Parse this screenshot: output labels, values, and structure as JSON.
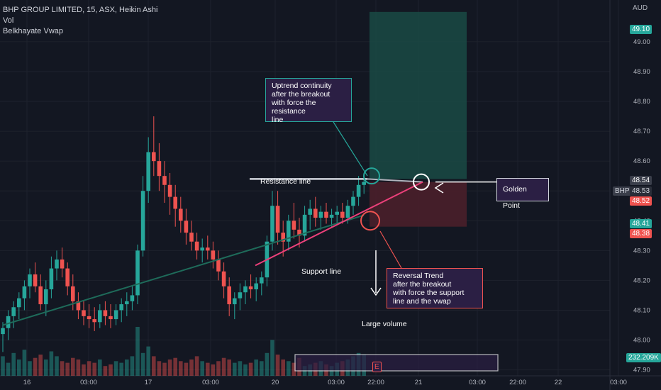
{
  "legend": {
    "symbol_line": "BHP GROUP LIMITED, 15, ASX, Heikin Ashi",
    "vol": "Vol",
    "vwap": "Belkhayate Vwap"
  },
  "price_axis": {
    "currency": "AUD",
    "ticks": [
      "49.00",
      "48.90",
      "48.80",
      "48.70",
      "48.60",
      "48.50",
      "48.40",
      "48.30",
      "48.20",
      "48.10",
      "48.00",
      "47.90"
    ],
    "labels": {
      "target": "49.10",
      "upper": "48.54",
      "symbol": "BHP",
      "last": "48.53",
      "lower": "48.52",
      "entry": "48.41",
      "stop": "48.38",
      "volume": "232.209K"
    }
  },
  "time_axis": {
    "ticks": [
      "16",
      "03:00",
      "17",
      "03:00",
      "20",
      "03:00",
      "22:00",
      "21",
      "03:00",
      "22:00",
      "22",
      "03:00"
    ]
  },
  "annotations": {
    "uptrend": "Uptrend continuity\nafter the breakout\nwith force the resistance\nline",
    "resistance": "Resistance line",
    "support": "Support line",
    "golden": "Golden Point",
    "reversal": "Reversal Trend\nafter the breakout\nwith force the support\nline and the vwap",
    "volume": "Large volume",
    "event_marker": "E"
  },
  "colors": {
    "background": "#131722",
    "up": "#26a69a",
    "down": "#ef5350",
    "vwap_up": "#ffffff",
    "vwap_down": "#ef5350",
    "vwap_green": "#1e6b5a",
    "profit_zone": "#1a4a44",
    "loss_zone": "#4a1f2a",
    "annotation_box": "#2b1f44"
  },
  "chart_data": {
    "type": "candlestick",
    "y_range": [
      47.88,
      49.14
    ],
    "candles": [
      [
        48.02,
        48.06,
        47.96,
        48.04
      ],
      [
        48.04,
        48.1,
        48.0,
        48.08
      ],
      [
        48.08,
        48.13,
        48.04,
        48.11
      ],
      [
        48.11,
        48.16,
        48.07,
        48.14
      ],
      [
        48.14,
        48.2,
        48.1,
        48.18
      ],
      [
        48.18,
        48.24,
        48.14,
        48.22
      ],
      [
        48.22,
        48.26,
        48.16,
        48.18
      ],
      [
        48.18,
        48.22,
        48.1,
        48.12
      ],
      [
        48.12,
        48.2,
        48.08,
        48.17
      ],
      [
        48.17,
        48.28,
        48.14,
        48.24
      ],
      [
        48.24,
        48.3,
        48.2,
        48.27
      ],
      [
        48.27,
        48.31,
        48.21,
        48.24
      ],
      [
        48.24,
        48.26,
        48.15,
        48.18
      ],
      [
        48.18,
        48.22,
        48.1,
        48.13
      ],
      [
        48.13,
        48.16,
        48.07,
        48.1
      ],
      [
        48.1,
        48.13,
        48.05,
        48.08
      ],
      [
        48.08,
        48.12,
        48.04,
        48.07
      ],
      [
        48.07,
        48.11,
        48.03,
        48.06
      ],
      [
        48.06,
        48.12,
        48.04,
        48.1
      ],
      [
        48.1,
        48.13,
        48.05,
        48.08
      ],
      [
        48.08,
        48.12,
        48.04,
        48.07
      ],
      [
        48.07,
        48.12,
        48.05,
        48.1
      ],
      [
        48.1,
        48.14,
        48.06,
        48.12
      ],
      [
        48.12,
        48.16,
        48.08,
        48.13
      ],
      [
        48.13,
        48.18,
        48.1,
        48.15
      ],
      [
        48.15,
        48.32,
        48.12,
        48.3
      ],
      [
        48.3,
        48.55,
        48.28,
        48.5
      ],
      [
        48.5,
        48.68,
        48.46,
        48.63
      ],
      [
        48.63,
        48.75,
        48.55,
        48.6
      ],
      [
        48.6,
        48.66,
        48.5,
        48.55
      ],
      [
        48.55,
        48.6,
        48.46,
        48.52
      ],
      [
        48.52,
        48.56,
        48.42,
        48.48
      ],
      [
        48.48,
        48.52,
        48.38,
        48.44
      ],
      [
        48.44,
        48.48,
        48.36,
        48.4
      ],
      [
        48.4,
        48.44,
        48.32,
        48.36
      ],
      [
        48.36,
        48.4,
        48.3,
        48.33
      ],
      [
        48.33,
        48.36,
        48.27,
        48.3
      ],
      [
        48.3,
        48.34,
        48.26,
        48.31
      ],
      [
        48.31,
        48.35,
        48.27,
        48.3
      ],
      [
        48.3,
        48.33,
        48.24,
        48.27
      ],
      [
        48.27,
        48.3,
        48.2,
        48.23
      ],
      [
        48.23,
        48.26,
        48.14,
        48.18
      ],
      [
        48.18,
        48.21,
        48.08,
        48.12
      ],
      [
        48.12,
        48.16,
        48.07,
        48.14
      ],
      [
        48.14,
        48.19,
        48.1,
        48.16
      ],
      [
        48.16,
        48.2,
        48.12,
        48.18
      ],
      [
        48.18,
        48.22,
        48.14,
        48.17
      ],
      [
        48.17,
        48.21,
        48.13,
        48.19
      ],
      [
        48.19,
        48.23,
        48.15,
        48.21
      ],
      [
        48.21,
        48.35,
        48.18,
        48.33
      ],
      [
        48.33,
        48.5,
        48.3,
        48.45
      ],
      [
        48.45,
        48.5,
        48.32,
        48.36
      ],
      [
        48.36,
        48.4,
        48.28,
        48.33
      ],
      [
        48.33,
        48.42,
        48.3,
        48.4
      ],
      [
        48.4,
        48.46,
        48.34,
        48.37
      ],
      [
        48.37,
        48.41,
        48.31,
        48.35
      ],
      [
        48.35,
        48.45,
        48.33,
        48.42
      ],
      [
        48.42,
        48.47,
        48.37,
        48.44
      ],
      [
        48.44,
        48.48,
        48.38,
        48.41
      ],
      [
        48.41,
        48.45,
        48.37,
        48.43
      ],
      [
        48.43,
        48.46,
        48.39,
        48.41
      ],
      [
        48.41,
        48.44,
        48.38,
        48.42
      ],
      [
        48.42,
        48.45,
        48.39,
        48.43
      ],
      [
        48.43,
        48.46,
        48.39,
        48.41
      ],
      [
        48.41,
        48.47,
        48.39,
        48.45
      ],
      [
        48.45,
        48.5,
        48.42,
        48.48
      ],
      [
        48.48,
        48.55,
        48.45,
        48.52
      ],
      [
        48.52,
        48.56,
        48.49,
        48.53
      ]
    ],
    "volume": [
      12,
      8,
      14,
      10,
      16,
      9,
      11,
      13,
      10,
      15,
      12,
      9,
      8,
      11,
      10,
      7,
      9,
      8,
      10,
      6,
      7,
      9,
      8,
      10,
      12,
      30,
      14,
      18,
      12,
      9,
      8,
      10,
      11,
      9,
      8,
      10,
      12,
      9,
      8,
      7,
      9,
      11,
      10,
      8,
      9,
      7,
      8,
      10,
      9,
      14,
      22,
      13,
      10,
      9,
      8,
      11,
      6,
      7,
      8,
      9,
      7,
      6,
      8,
      9,
      10,
      12,
      14,
      13
    ]
  }
}
